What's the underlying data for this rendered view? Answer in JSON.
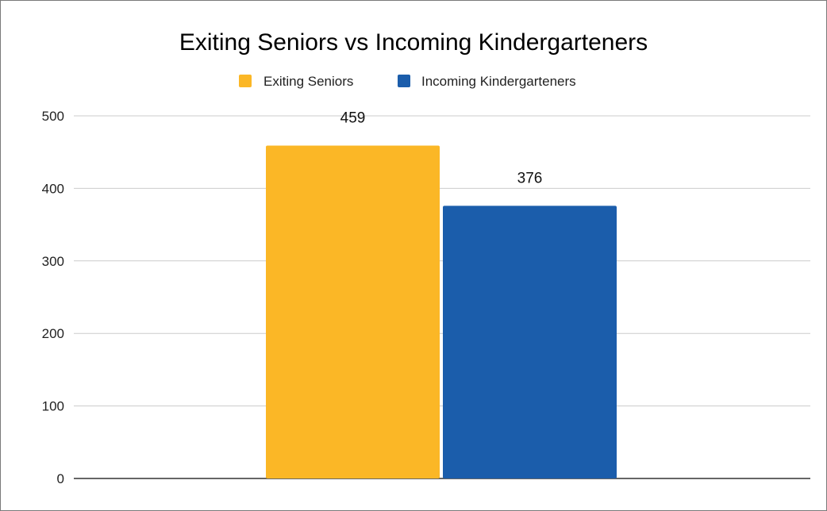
{
  "chart_data": {
    "type": "bar",
    "title": "Exiting Seniors vs Incoming Kindergarteners",
    "xlabel": "",
    "ylabel": "",
    "categories": [
      ""
    ],
    "series": [
      {
        "name": "Exiting Seniors",
        "values": [
          459
        ],
        "color": "#FBB726"
      },
      {
        "name": "Incoming Kindergarteners",
        "values": [
          376
        ],
        "color": "#1B5DAB"
      }
    ],
    "data_labels": [
      "459",
      "376"
    ],
    "ylim": [
      0,
      500
    ],
    "yticks": [
      0,
      100,
      200,
      300,
      400,
      500
    ],
    "grid": true,
    "legend_position": "top-center"
  }
}
